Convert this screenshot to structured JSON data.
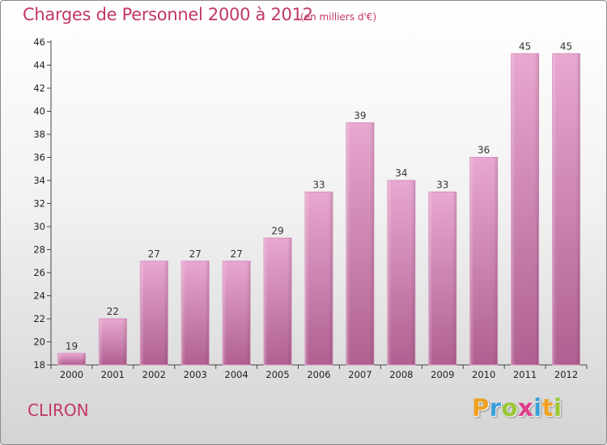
{
  "title": "Charges de Personnel 2000 à 2012",
  "subtitle": "(en milliers d'€)",
  "commune": "CLIRON",
  "logo": {
    "letters": [
      "P",
      "r",
      "o",
      "x",
      "i",
      "t",
      "i"
    ],
    "colors": [
      "#f0a020",
      "#3aa0d8",
      "#9ac834",
      "#e03c8c",
      "#3aa0d8",
      "#f0a020",
      "#9ac834"
    ]
  },
  "colors": {
    "bar_light": "#e8a8d0",
    "bar_dark": "#b06090",
    "axis": "#444444",
    "text_accent": "#c2366a"
  },
  "chart_data": {
    "type": "bar",
    "title": "Charges de Personnel 2000 à 2012",
    "xlabel": "",
    "ylabel": "",
    "ylim": [
      18,
      46
    ],
    "yticks": [
      18,
      20,
      22,
      24,
      26,
      28,
      30,
      32,
      34,
      36,
      38,
      40,
      42,
      44,
      46
    ],
    "categories": [
      "2000",
      "2001",
      "2002",
      "2003",
      "2004",
      "2005",
      "2006",
      "2007",
      "2008",
      "2009",
      "2010",
      "2011",
      "2012"
    ],
    "values": [
      19,
      22,
      27,
      27,
      27,
      29,
      33,
      39,
      34,
      33,
      36,
      45,
      45
    ],
    "grid": false,
    "legend": "none"
  }
}
